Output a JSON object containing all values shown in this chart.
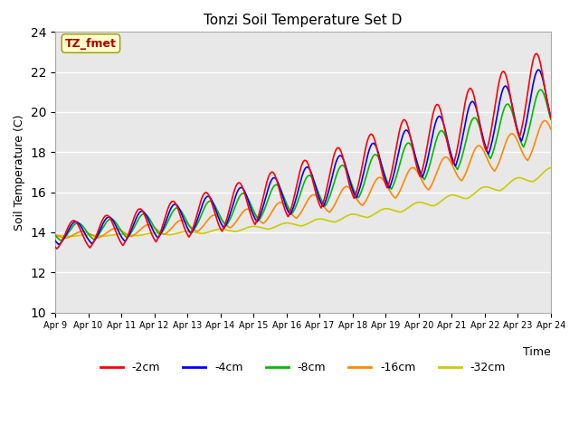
{
  "title": "Tonzi Soil Temperature Set D",
  "xlabel": "Time",
  "ylabel": "Soil Temperature (C)",
  "ylim": [
    10,
    24
  ],
  "yticks": [
    10,
    12,
    14,
    16,
    18,
    20,
    22,
    24
  ],
  "xlim": [
    0,
    15
  ],
  "xtick_labels": [
    "Apr 9",
    "Apr 10",
    "Apr 11",
    "Apr 12",
    "Apr 13",
    "Apr 14",
    "Apr 15",
    "Apr 16",
    "Apr 17",
    "Apr 18",
    "Apr 19",
    "Apr 20",
    "Apr 21",
    "Apr 22",
    "Apr 23",
    "Apr 24"
  ],
  "label_box_text": "TZ_fmet",
  "label_box_color": "#ffffcc",
  "label_box_text_color": "#aa0000",
  "background_color": "#e8e8e8",
  "lines": {
    "-2cm": {
      "color": "#ff0000",
      "lw": 1.2
    },
    "-4cm": {
      "color": "#0000ff",
      "lw": 1.2
    },
    "-8cm": {
      "color": "#00bb00",
      "lw": 1.2
    },
    "-16cm": {
      "color": "#ff8800",
      "lw": 1.2
    },
    "-32cm": {
      "color": "#cccc00",
      "lw": 1.2
    }
  },
  "legend_order": [
    "-2cm",
    "-4cm",
    "-8cm",
    "-16cm",
    "-32cm"
  ]
}
